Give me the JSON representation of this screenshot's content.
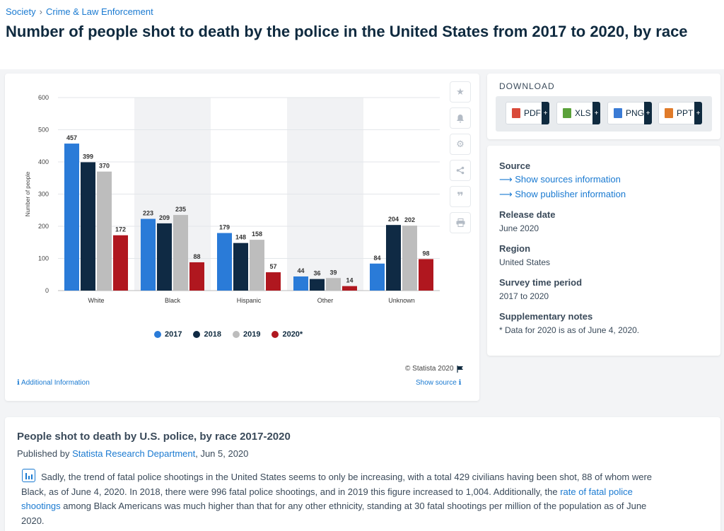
{
  "breadcrumb": {
    "items": [
      "Society",
      "Crime & Law Enforcement"
    ],
    "separator": "›"
  },
  "page_title": "Number of people shot to death by the police in the United States from 2017 to 2020, by race",
  "chart_data": {
    "type": "bar",
    "title": "",
    "xlabel": "",
    "ylabel": "Number of people",
    "ylim": [
      0,
      600
    ],
    "yticks": [
      "0",
      "100",
      "200",
      "300",
      "400",
      "500",
      "600"
    ],
    "categories": [
      "White",
      "Black",
      "Hispanic",
      "Other",
      "Unknown"
    ],
    "series": [
      {
        "name": "2017",
        "color": "#2a7bd8",
        "values": [
          457,
          223,
          179,
          44,
          84
        ]
      },
      {
        "name": "2018",
        "color": "#0f2a44",
        "values": [
          399,
          209,
          148,
          36,
          204
        ]
      },
      {
        "name": "2019",
        "color": "#bdbdbd",
        "values": [
          370,
          235,
          158,
          39,
          202
        ]
      },
      {
        "name": "2020*",
        "color": "#b0171f",
        "values": [
          172,
          88,
          57,
          14,
          98
        ]
      }
    ],
    "grid": true,
    "legend": "bottom"
  },
  "chart_footer": {
    "copyright": "© Statista 2020",
    "additional_info": "Additional Information",
    "show_source": "Show source"
  },
  "tools": [
    "star-icon",
    "bell-icon",
    "gear-icon",
    "share-icon",
    "quote-icon",
    "print-icon"
  ],
  "download": {
    "title": "DOWNLOAD",
    "buttons": [
      {
        "label": "PDF",
        "color": "#d94a3a"
      },
      {
        "label": "XLS",
        "color": "#5aa13a"
      },
      {
        "label": "PNG",
        "color": "#3a7bd5"
      },
      {
        "label": "PPT",
        "color": "#e07b2a"
      }
    ],
    "plus": "+"
  },
  "meta": {
    "source_heading": "Source",
    "source_link": "Show sources information",
    "publisher_link": "Show publisher information",
    "release_heading": "Release date",
    "release_value": "June 2020",
    "region_heading": "Region",
    "region_value": "United States",
    "period_heading": "Survey time period",
    "period_value": "2017 to 2020",
    "notes_heading": "Supplementary notes",
    "notes_value": "* Data for 2020 is as of June 4, 2020."
  },
  "article": {
    "title": "People shot to death by U.S. police, by race 2017-2020",
    "published_by": "Published by",
    "publisher": "Statista Research Department",
    "date": ", Jun 5, 2020",
    "text_1": "Sadly, the trend of fatal police shootings in the United States seems to only be increasing, with a total 429 civilians having been shot, 88 of whom were Black, as of June 4, 2020. In 2018, there were 996 fatal police shootings, and in 2019 this figure increased to 1,004. Additionally, the ",
    "link": "rate of fatal police shootings",
    "text_2": " among Black Americans was much higher than that for any other ethnicity, standing at 30 fatal shootings per million of the population as of June 2020."
  }
}
